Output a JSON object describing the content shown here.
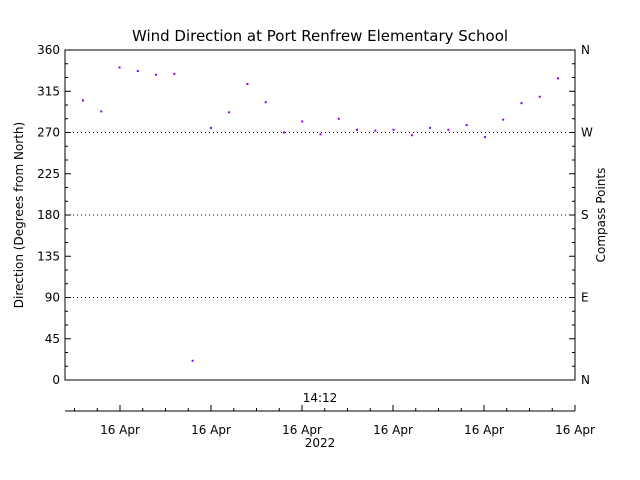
{
  "chart_data": {
    "type": "scatter",
    "title": "Wind Direction at Port Renfrew Elementary School",
    "ylabel": "Direction (Degrees from North)",
    "ylabel_right": "Compass Points",
    "ylim": [
      0,
      360
    ],
    "yticks": [
      0,
      45,
      90,
      135,
      180,
      225,
      270,
      315,
      360
    ],
    "compass_ticks": [
      {
        "value": 0,
        "label": "N"
      },
      {
        "value": 90,
        "label": "E"
      },
      {
        "value": 180,
        "label": "S"
      },
      {
        "value": 270,
        "label": "W"
      },
      {
        "value": 360,
        "label": "N"
      }
    ],
    "gridlines": [
      90,
      180,
      270
    ],
    "time_label": "14:12",
    "x_tick_labels": [
      "16 Apr",
      "16 Apr",
      "16 Apr",
      "16 Apr",
      "16 Apr",
      "16 Apr"
    ],
    "x_year": "2022",
    "marker_color": "#8000ff",
    "points": [
      {
        "x": 0.0,
        "y": 305
      },
      {
        "x": 0.2,
        "y": 293
      },
      {
        "x": 0.4,
        "y": 341
      },
      {
        "x": 0.6,
        "y": 337
      },
      {
        "x": 0.8,
        "y": 333
      },
      {
        "x": 1.0,
        "y": 334
      },
      {
        "x": 1.2,
        "y": 21
      },
      {
        "x": 1.4,
        "y": 275
      },
      {
        "x": 1.6,
        "y": 292
      },
      {
        "x": 1.8,
        "y": 323
      },
      {
        "x": 2.0,
        "y": 303
      },
      {
        "x": 2.2,
        "y": 270
      },
      {
        "x": 2.4,
        "y": 282
      },
      {
        "x": 2.6,
        "y": 268
      },
      {
        "x": 2.8,
        "y": 285
      },
      {
        "x": 3.0,
        "y": 273
      },
      {
        "x": 3.2,
        "y": 272
      },
      {
        "x": 3.4,
        "y": 273
      },
      {
        "x": 3.6,
        "y": 267
      },
      {
        "x": 3.8,
        "y": 275
      },
      {
        "x": 4.0,
        "y": 273
      },
      {
        "x": 4.2,
        "y": 278
      },
      {
        "x": 4.4,
        "y": 265
      },
      {
        "x": 4.6,
        "y": 284
      },
      {
        "x": 4.8,
        "y": 302
      },
      {
        "x": 5.0,
        "y": 309
      },
      {
        "x": 5.2,
        "y": 329
      }
    ]
  }
}
